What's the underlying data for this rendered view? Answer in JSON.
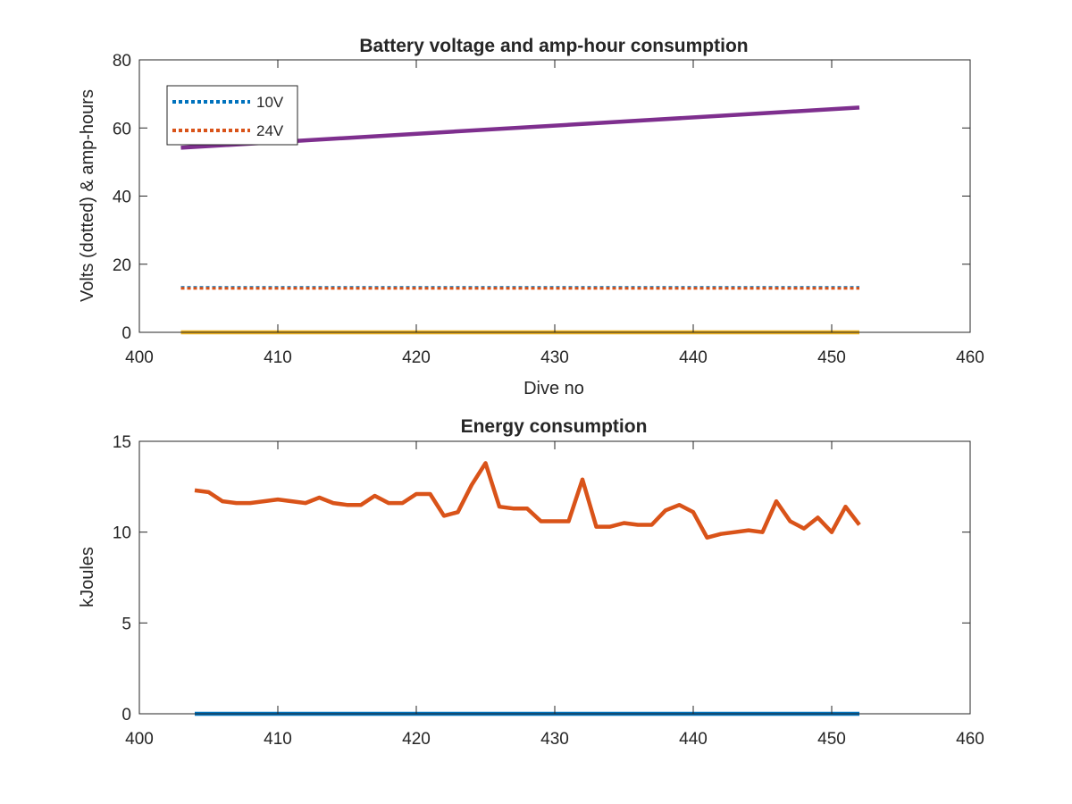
{
  "chart_data": [
    {
      "type": "line",
      "title": "Battery voltage and amp-hour consumption",
      "xlabel": "Dive no",
      "ylabel": "Volts (dotted) & amp-hours",
      "xlim": [
        400,
        460
      ],
      "ylim": [
        0,
        80
      ],
      "xticks": [
        400,
        410,
        420,
        430,
        440,
        450,
        460
      ],
      "yticks": [
        0,
        20,
        40,
        60,
        80
      ],
      "grid": false,
      "legend": {
        "position": "top-left",
        "entries": [
          "10V",
          "24V"
        ]
      },
      "series": [
        {
          "name": "10V",
          "style": "dotted",
          "color": "#0072BD",
          "x": [
            403,
            452
          ],
          "y": [
            13.2,
            13.2
          ]
        },
        {
          "name": "24V",
          "style": "dotted",
          "color": "#D95319",
          "x": [
            403,
            452
          ],
          "y": [
            12.9,
            12.9
          ]
        },
        {
          "style": "solid",
          "color": "#7E2F8E",
          "x": [
            403,
            452
          ],
          "y": [
            54.2,
            66.0
          ]
        },
        {
          "style": "solid",
          "color": "#EDB120",
          "x": [
            403,
            452
          ],
          "y": [
            0,
            0
          ]
        }
      ]
    },
    {
      "type": "line",
      "title": "Energy consumption",
      "xlabel": "",
      "ylabel": "kJoules",
      "xlim": [
        400,
        460
      ],
      "ylim": [
        0,
        15
      ],
      "xticks": [
        400,
        410,
        420,
        430,
        440,
        450,
        460
      ],
      "yticks": [
        0,
        5,
        10,
        15
      ],
      "grid": false,
      "series": [
        {
          "style": "solid",
          "color": "#0072BD",
          "x": [
            404,
            452
          ],
          "y": [
            0,
            0
          ]
        },
        {
          "style": "solid",
          "color": "#D95319",
          "x": [
            404,
            405,
            406,
            407,
            408,
            409,
            410,
            411,
            412,
            413,
            414,
            415,
            416,
            417,
            418,
            419,
            420,
            421,
            422,
            423,
            424,
            425,
            426,
            427,
            428,
            429,
            430,
            431,
            432,
            433,
            434,
            435,
            436,
            437,
            438,
            439,
            440,
            441,
            442,
            443,
            444,
            445,
            446,
            447,
            448,
            449,
            450,
            451,
            452
          ],
          "y": [
            12.3,
            12.2,
            11.7,
            11.6,
            11.6,
            11.7,
            11.8,
            11.7,
            11.6,
            11.9,
            11.6,
            11.5,
            11.5,
            12.0,
            11.6,
            11.6,
            12.1,
            12.1,
            10.9,
            11.1,
            12.6,
            13.8,
            11.4,
            11.3,
            11.3,
            10.6,
            10.6,
            10.6,
            12.9,
            10.3,
            10.3,
            10.5,
            10.4,
            10.4,
            11.2,
            11.5,
            11.1,
            9.7,
            9.9,
            10.0,
            10.1,
            10.0,
            11.7,
            10.6,
            10.2,
            10.8,
            10.0,
            11.4,
            10.4
          ]
        }
      ]
    }
  ]
}
